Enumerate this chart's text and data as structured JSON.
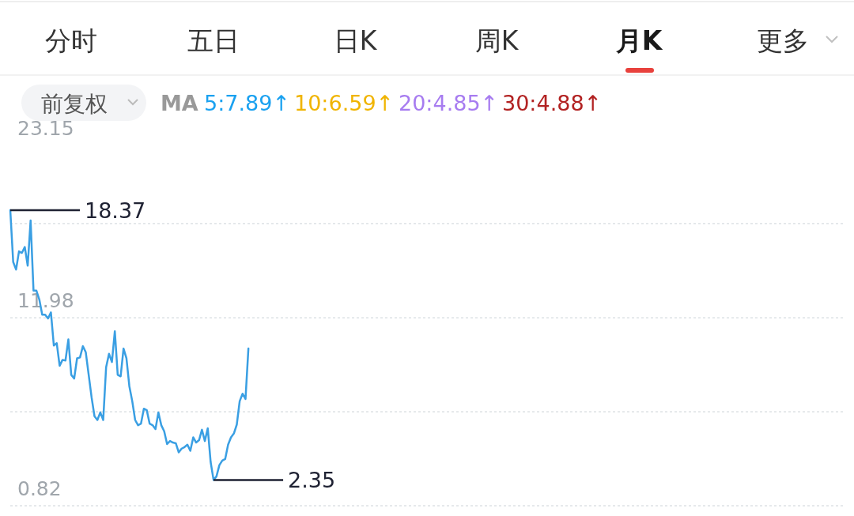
{
  "chart_data": {
    "type": "line",
    "categories": [
      null,
      null,
      null,
      null,
      null,
      null,
      null,
      null,
      null,
      null,
      null,
      null,
      null,
      null,
      null,
      null,
      null,
      null,
      null,
      null,
      null,
      null,
      null,
      null,
      null,
      null,
      null,
      null,
      null,
      null,
      null,
      null,
      null,
      null,
      null,
      null,
      null,
      null,
      null,
      null,
      null,
      null,
      null,
      null,
      null,
      null,
      null,
      null,
      null,
      null,
      null,
      null,
      null,
      null,
      null,
      null,
      null,
      null,
      null,
      null,
      null,
      null,
      null,
      null,
      null,
      null,
      null,
      null,
      null,
      null,
      null,
      null,
      null,
      null,
      null,
      null,
      null,
      null,
      null,
      null,
      null,
      null,
      null,
      null,
      null,
      null,
      null,
      null,
      null,
      null,
      null,
      null,
      null,
      null,
      null,
      null,
      null,
      null,
      null,
      null,
      null,
      null,
      null,
      null,
      null,
      null,
      null,
      null,
      null,
      null,
      null,
      null,
      null,
      null,
      null,
      null,
      null,
      null,
      null,
      null,
      null,
      null,
      null,
      null,
      null,
      null,
      null,
      null,
      null,
      null,
      null,
      null,
      null,
      null,
      null,
      null,
      null,
      null,
      null,
      null,
      null,
      null,
      null,
      null,
      null,
      null,
      null,
      null,
      null,
      null,
      null,
      null,
      null,
      null,
      null,
      null,
      null,
      null,
      null,
      null,
      null,
      null,
      null,
      null,
      null,
      null,
      null,
      null,
      null,
      null,
      null,
      null,
      null,
      null,
      null,
      null,
      null,
      null,
      null,
      null,
      null,
      null,
      null,
      null,
      null,
      null,
      null,
      null,
      null,
      null,
      null,
      null,
      null,
      null,
      null,
      null,
      null,
      null,
      null,
      null,
      null,
      null,
      null,
      null,
      null,
      null,
      null,
      null,
      null,
      null,
      null,
      null,
      null,
      null,
      null,
      null,
      null,
      null,
      null,
      null,
      null,
      null,
      null,
      null,
      null,
      null,
      null,
      null,
      null,
      null,
      null,
      null,
      null,
      null,
      null,
      null,
      null,
      null,
      null,
      null,
      null,
      null,
      null,
      null,
      null,
      null,
      null,
      null,
      null,
      null,
      null,
      null,
      null,
      null,
      null,
      null,
      null,
      null,
      null,
      null,
      null,
      null,
      null,
      null,
      null,
      null,
      null,
      null,
      null,
      null,
      null,
      null,
      null,
      null,
      null,
      null,
      null,
      null,
      null,
      null,
      null,
      null,
      null,
      null,
      null,
      null,
      null,
      null
    ],
    "series": [
      {
        "color": "#3a9fe3",
        "values": [
          18.37,
          15.29,
          14.84,
          15.92,
          15.83,
          16.18,
          15.07,
          17.75,
          13.59,
          13.59,
          13.06,
          12.16,
          12.16,
          11.94,
          12.3,
          10.33,
          10.47,
          9.13,
          9.48,
          9.44,
          10.69,
          8.59,
          8.37,
          9.57,
          9.62,
          10.29,
          9.93,
          8.59,
          7.25,
          6.13,
          5.91,
          6.36,
          5.91,
          9.04,
          9.84,
          9.35,
          11.18,
          8.59,
          8.5,
          10.15,
          9.57,
          7.92,
          7.03,
          5.91,
          5.6,
          5.69,
          6.58,
          6.49,
          5.69,
          5.6,
          5.37,
          6.36,
          5.6,
          5.24,
          4.48,
          4.66,
          4.57,
          4.53,
          3.99,
          4.21,
          4.3,
          4.44,
          4.08,
          4.88,
          4.57,
          4.71,
          5.33,
          4.66,
          5.42,
          3.41,
          2.35,
          2.56,
          3.23,
          3.5,
          3.59,
          4.44,
          4.88,
          5.11,
          5.64,
          7.03,
          7.47,
          7.16,
          10.15,
          null,
          null,
          null,
          null,
          null,
          null,
          null,
          null,
          null,
          null,
          null,
          null,
          null,
          null,
          null,
          null,
          null,
          null,
          null,
          null,
          null,
          null,
          null,
          null,
          null,
          null,
          null,
          null,
          null,
          null,
          null,
          null,
          null,
          null,
          null,
          null,
          null,
          null,
          null,
          null,
          null,
          null,
          null,
          null,
          null,
          null,
          null,
          null,
          null,
          null,
          null,
          null,
          null,
          null,
          null,
          null,
          null,
          null,
          null,
          null,
          null,
          null,
          null,
          null,
          null,
          null,
          null,
          null,
          null,
          null,
          null,
          null,
          null,
          null,
          null,
          null,
          null,
          null,
          null,
          null,
          null,
          null,
          null,
          null,
          null,
          null,
          null,
          null,
          null,
          null,
          null,
          null,
          null,
          null,
          null,
          null,
          null,
          null,
          null,
          null,
          null,
          null,
          null,
          null,
          null,
          null,
          null,
          null,
          null,
          null,
          null,
          null,
          null,
          null,
          null,
          null,
          null,
          null,
          null,
          null,
          null,
          null,
          null,
          null,
          null,
          null,
          null,
          null,
          null,
          null,
          null,
          null,
          null,
          null,
          null,
          null,
          null,
          null,
          null,
          null,
          null,
          null,
          null,
          null,
          null,
          null,
          null,
          null,
          null,
          null,
          null,
          null,
          null,
          null,
          null,
          null,
          null,
          null,
          null,
          null,
          null,
          null,
          null,
          null,
          null,
          null,
          null,
          null,
          null,
          null,
          null,
          null,
          null,
          null,
          null,
          null,
          null,
          null,
          null,
          null,
          null,
          null,
          null,
          null,
          null,
          null,
          null,
          null,
          null,
          null,
          null,
          null,
          null,
          null,
          null,
          null,
          null,
          null,
          null,
          null,
          null,
          null,
          null,
          null,
          null
        ]
      }
    ],
    "ylim": [
      0.82,
      23.15
    ],
    "yticks": [
      0.82,
      {
        "value": 6.4,
        "label": null
      },
      11.98,
      {
        "value": 17.57,
        "label": null
      },
      23.15
    ],
    "grid": "y",
    "tick_labels": "y",
    "annotations": [
      "分时",
      "五日",
      "日K",
      "周K",
      "月K",
      "更多",
      "前复权",
      "MA",
      "5:7.89↑",
      "10:6.59↑",
      "20:4.85↑",
      "30:4.88↑",
      "18.37",
      "2.35"
    ]
  }
}
